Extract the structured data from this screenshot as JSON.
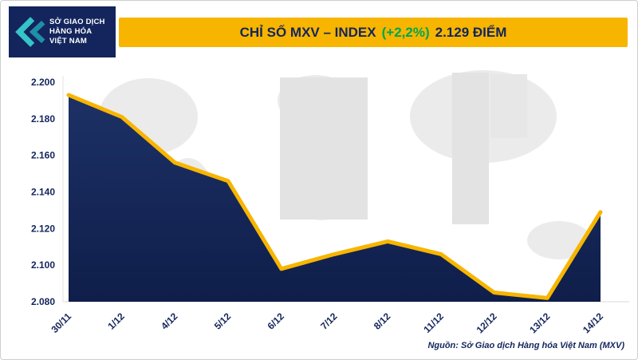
{
  "logo": {
    "line1": "SỞ GIAO DỊCH",
    "line2": "HÀNG HÓA",
    "line3": "VIỆT NAM"
  },
  "header": {
    "title_main": "CHỈ SỐ MXV – INDEX",
    "title_change": "(+2,2%)",
    "title_value": "2.129 ĐIỂM"
  },
  "source": "Nguồn: Sở Giao dịch Hàng hóa Việt Nam (MXV)",
  "colors": {
    "navy": "#13255c",
    "yellow": "#f7b500",
    "green": "#00a551",
    "teal": "#2cb5bc"
  },
  "chart_data": {
    "type": "area",
    "title": "CHỈ SỐ MXV – INDEX",
    "categories": [
      "30/11",
      "1/12",
      "4/12",
      "5/12",
      "6/12",
      "7/12",
      "8/12",
      "11/12",
      "12/12",
      "13/12",
      "14/12"
    ],
    "values": [
      2193,
      2181,
      2156,
      2146,
      2098,
      2106,
      2113,
      2106,
      2085,
      2082,
      2129
    ],
    "ylim": [
      2080,
      2200
    ],
    "yticks": [
      2200,
      2180,
      2160,
      2140,
      2120,
      2100,
      2080
    ],
    "ytick_labels": [
      "2.200",
      "2.180",
      "2.160",
      "2.140",
      "2.120",
      "2.100",
      "2.080"
    ],
    "line_color": "#f7b500",
    "fill_top": "#1d3166",
    "fill_bottom": "#0f1e4a",
    "grid": false,
    "legend": "none"
  }
}
